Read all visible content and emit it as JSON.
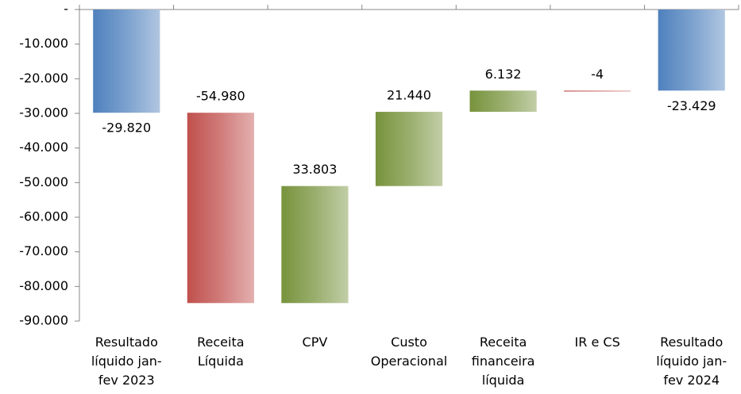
{
  "chart_data": {
    "type": "waterfall",
    "categories": [
      "Resultado líquido jan-fev 2023",
      "Receita Líquida",
      "CPV",
      "Custo Operacional",
      "Receita financeira líquida",
      "IR e CS",
      "Resultado líquido jan-fev 2024"
    ],
    "values": [
      -29820,
      -54980,
      33803,
      21440,
      6132,
      -4,
      -23429
    ],
    "value_labels": [
      "-29.820",
      "-54.980",
      "33.803",
      "21.440",
      "6.132",
      "-4",
      "-23.429"
    ],
    "measure": [
      "total",
      "relative",
      "relative",
      "relative",
      "relative",
      "relative",
      "total"
    ],
    "colors": [
      "#4f81bd",
      "#c0504d",
      "#77933c",
      "#77933c",
      "#77933c",
      "#c0504d",
      "#4f81bd"
    ],
    "ylim": [
      -90000,
      0
    ],
    "yticks": [
      {
        "value": 0,
        "label": "-"
      },
      {
        "value": -10000,
        "label": "-10.000"
      },
      {
        "value": -20000,
        "label": "-20.000"
      },
      {
        "value": -30000,
        "label": "-30.000"
      },
      {
        "value": -40000,
        "label": "-40.000"
      },
      {
        "value": -50000,
        "label": "-50.000"
      },
      {
        "value": -60000,
        "label": "-60.000"
      },
      {
        "value": -70000,
        "label": "-70.000"
      },
      {
        "value": -80000,
        "label": "-80.000"
      },
      {
        "value": -90000,
        "label": "-90.000"
      }
    ]
  }
}
